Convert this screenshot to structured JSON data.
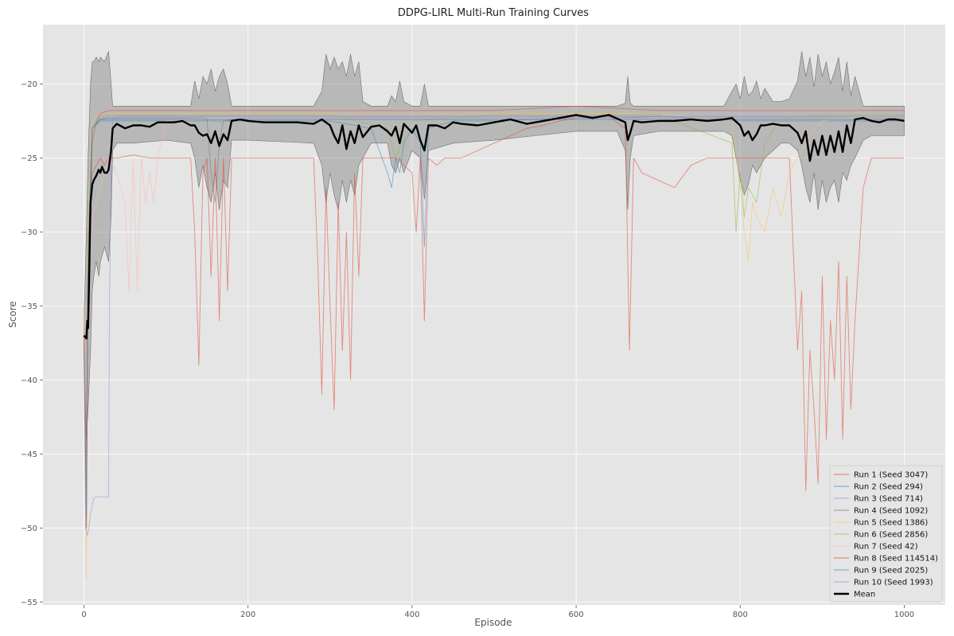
{
  "chart_data": {
    "type": "line",
    "title": "DDPG-LIRL Multi-Run Training Curves",
    "xlabel": "Episode",
    "ylabel": "Score",
    "xlim": [
      -50,
      1050
    ],
    "ylim": [
      -55.2,
      -16.0
    ],
    "xticks": [
      0,
      200,
      400,
      600,
      800,
      1000
    ],
    "yticks": [
      -55,
      -50,
      -45,
      -40,
      -35,
      -30,
      -25,
      -20
    ],
    "grid": true,
    "background": "#e5e5e5",
    "legend_position": "bottom-right",
    "series": [
      {
        "name": "Run 1 (Seed 3047)",
        "color": "#e24a33",
        "x": [
          0,
          3,
          5,
          10,
          15,
          20,
          25,
          30,
          40,
          60,
          80,
          100,
          120,
          130,
          135,
          140,
          145,
          150,
          155,
          160,
          165,
          170,
          175,
          180,
          200,
          220,
          240,
          260,
          280,
          285,
          290,
          295,
          300,
          305,
          310,
          315,
          320,
          325,
          330,
          335,
          340,
          350,
          360,
          380,
          400,
          405,
          410,
          415,
          420,
          430,
          440,
          450,
          460,
          480,
          500,
          520,
          540,
          560,
          580,
          600,
          620,
          640,
          660,
          665,
          670,
          680,
          700,
          720,
          740,
          760,
          780,
          800,
          820,
          840,
          860,
          870,
          875,
          880,
          885,
          890,
          895,
          900,
          905,
          910,
          915,
          920,
          925,
          930,
          935,
          940,
          950,
          960,
          970,
          980,
          990,
          1000
        ],
        "y": [
          -36,
          -46,
          -30,
          -26,
          -25.5,
          -25,
          -25.5,
          -25,
          -25,
          -24.8,
          -25,
          -25,
          -25,
          -25,
          -30,
          -39,
          -26,
          -25,
          -33,
          -25,
          -36,
          -25,
          -34,
          -25,
          -25,
          -25,
          -25,
          -25,
          -25,
          -32,
          -41,
          -27,
          -35,
          -42,
          -28,
          -38,
          -30,
          -40,
          -26,
          -33,
          -25,
          -25,
          -25,
          -25,
          -26,
          -30,
          -25,
          -36,
          -25,
          -25.5,
          -25,
          -25,
          -25,
          -24.5,
          -24,
          -23.5,
          -23,
          -22.8,
          -22.5,
          -22.3,
          -22.2,
          -22.2,
          -23,
          -38,
          -25,
          -26,
          -26.5,
          -27,
          -25.5,
          -25,
          -25,
          -25,
          -25,
          -25,
          -25,
          -38,
          -34,
          -47.5,
          -38,
          -42,
          -47,
          -33,
          -44,
          -36,
          -40,
          -32,
          -44,
          -33,
          -42,
          -36,
          -27,
          -25,
          -25,
          -25,
          -25,
          -25
        ]
      },
      {
        "name": "Run 2 (Seed 294)",
        "color": "#348abd",
        "x": [
          0,
          3,
          5,
          10,
          20,
          30,
          60,
          100,
          150,
          200,
          250,
          300,
          350,
          370,
          375,
          380,
          385,
          390,
          400,
          410,
          415,
          420,
          450,
          500,
          550,
          600,
          650,
          700,
          750,
          800,
          850,
          900,
          950,
          1000
        ],
        "y": [
          -38,
          -50,
          -30,
          -23,
          -22.5,
          -22.5,
          -22.5,
          -22.5,
          -22.5,
          -22.5,
          -22.5,
          -22.5,
          -23,
          -26,
          -27,
          -25,
          -26,
          -24,
          -23,
          -24,
          -31,
          -23,
          -22.5,
          -22.5,
          -22.4,
          -22.3,
          -22.3,
          -22.2,
          -22.3,
          -22.5,
          -22.5,
          -22.5,
          -22.5,
          -22.5
        ]
      },
      {
        "name": "Run 3 (Seed 714)",
        "color": "#988ed5",
        "x": [
          0,
          3,
          5,
          10,
          20,
          30,
          60,
          100,
          150,
          200,
          300,
          400,
          500,
          600,
          700,
          800,
          900,
          1000
        ],
        "y": [
          -37,
          -49,
          -35,
          -23,
          -22.3,
          -22.2,
          -22.2,
          -22.2,
          -22.2,
          -22.2,
          -22.2,
          -22.2,
          -22.2,
          -22.2,
          -22.2,
          -22.2,
          -22.2,
          -22.2
        ]
      },
      {
        "name": "Run 4 (Seed 1092)",
        "color": "#777777",
        "x": [
          0,
          3,
          5,
          10,
          20,
          30,
          60,
          100,
          150,
          155,
          160,
          165,
          170,
          200,
          300,
          400,
          500,
          600,
          700,
          800,
          900,
          1000
        ],
        "y": [
          -37,
          -48,
          -32,
          -23,
          -22.4,
          -22.3,
          -22.3,
          -22.3,
          -22.3,
          -26,
          -28,
          -24,
          -22.5,
          -22.3,
          -22.3,
          -22.3,
          -22.3,
          -22.3,
          -22.3,
          -22.3,
          -22.3,
          -22.3
        ]
      },
      {
        "name": "Run 5 (Seed 1386)",
        "color": "#fbc15e",
        "x": [
          0,
          3,
          5,
          8,
          10,
          20,
          30,
          60,
          100,
          200,
          300,
          400,
          500,
          600,
          700,
          790,
          800,
          805,
          810,
          815,
          820,
          830,
          840,
          850,
          860,
          870,
          880,
          890,
          900,
          950,
          1000
        ],
        "y": [
          -35,
          -53.5,
          -30,
          -24,
          -22.5,
          -22,
          -22,
          -22,
          -22,
          -22,
          -22,
          -22,
          -22,
          -22,
          -22,
          -22.5,
          -27,
          -30,
          -32,
          -28,
          -29,
          -30,
          -27,
          -29,
          -26,
          -25,
          -24,
          -23,
          -22.5,
          -22.2,
          -22.2
        ]
      },
      {
        "name": "Run 6 (Seed 2856)",
        "color": "#8eba42",
        "x": [
          0,
          3,
          5,
          10,
          20,
          30,
          60,
          100,
          200,
          300,
          370,
          380,
          400,
          500,
          600,
          700,
          790,
          795,
          800,
          805,
          810,
          820,
          830,
          850,
          900,
          1000
        ],
        "y": [
          -36,
          -50,
          -31,
          -23,
          -22.2,
          -22.1,
          -22.1,
          -22.1,
          -22.1,
          -22.1,
          -23,
          -25,
          -22.5,
          -22.1,
          -22.1,
          -22.1,
          -24,
          -30,
          -26,
          -29,
          -27,
          -28,
          -24,
          -22.3,
          -22.1,
          -22.1
        ]
      },
      {
        "name": "Run 7 (Seed 42)",
        "color": "#ffb5b8",
        "x": [
          0,
          3,
          5,
          10,
          20,
          30,
          40,
          50,
          55,
          60,
          65,
          70,
          75,
          80,
          85,
          90,
          100,
          150,
          200,
          300,
          400,
          500,
          600,
          700,
          800,
          900,
          1000
        ],
        "y": [
          -36,
          -49,
          -34,
          -29,
          -27,
          -25,
          -26,
          -28,
          -34,
          -25,
          -34,
          -25,
          -28,
          -26,
          -28,
          -25,
          -22.5,
          -22.3,
          -22.3,
          -22.3,
          -22.3,
          -22.3,
          -22.3,
          -22.3,
          -22.3,
          -22.3,
          -22.3
        ]
      },
      {
        "name": "Run 8 (Seed 114514)",
        "color": "#e24a33",
        "x": [
          0,
          3,
          5,
          10,
          15,
          20,
          30,
          40,
          60,
          100,
          200,
          300,
          400,
          500,
          600,
          700,
          800,
          850,
          900,
          950,
          1000
        ],
        "y": [
          -37,
          -50,
          -34,
          -24,
          -22.5,
          -22,
          -21.8,
          -21.8,
          -21.8,
          -21.8,
          -21.8,
          -21.8,
          -21.8,
          -21.8,
          -21.5,
          -21.8,
          -21.8,
          -21.8,
          -21.8,
          -21.8,
          -21.8
        ]
      },
      {
        "name": "Run 9 (Seed 2025)",
        "color": "#348abd",
        "x": [
          0,
          3,
          5,
          10,
          20,
          30,
          60,
          100,
          200,
          300,
          400,
          500,
          600,
          700,
          800,
          900,
          1000
        ],
        "y": [
          -38,
          -49,
          -33,
          -23,
          -22.4,
          -22.4,
          -22.4,
          -22.4,
          -22.4,
          -22.4,
          -22.4,
          -22.4,
          -22.4,
          -22.4,
          -22.4,
          -22.4,
          -22.4
        ]
      },
      {
        "name": "Run 10 (Seed 1993)",
        "color": "#988ed5",
        "x": [
          0,
          2,
          4,
          6,
          8,
          10,
          12,
          15,
          20,
          25,
          28,
          30,
          31,
          33,
          35,
          40,
          60,
          100,
          200,
          300,
          400,
          500,
          600,
          700,
          800,
          900,
          1000
        ],
        "y": [
          -38,
          -50,
          -50.5,
          -50,
          -49,
          -48.5,
          -48,
          -47.9,
          -47.9,
          -47.9,
          -47.9,
          -47.9,
          -35,
          -26,
          -22.5,
          -22.2,
          -22.2,
          -22.2,
          -22.2,
          -22.2,
          -22.2,
          -22.2,
          -22.2,
          -22.2,
          -22.2,
          -22.2,
          -22.2
        ]
      },
      {
        "name": "Mean",
        "color": "#000000",
        "x": [
          0,
          3,
          4,
          5,
          6,
          8,
          10,
          12,
          15,
          18,
          20,
          22,
          25,
          28,
          30,
          33,
          35,
          40,
          50,
          60,
          70,
          80,
          90,
          100,
          110,
          120,
          130,
          135,
          140,
          145,
          150,
          155,
          160,
          165,
          170,
          175,
          180,
          190,
          200,
          220,
          240,
          260,
          280,
          290,
          300,
          305,
          310,
          315,
          320,
          325,
          330,
          335,
          340,
          350,
          360,
          370,
          375,
          380,
          385,
          390,
          400,
          405,
          410,
          415,
          420,
          430,
          440,
          450,
          460,
          480,
          500,
          520,
          540,
          560,
          580,
          600,
          620,
          640,
          660,
          663,
          666,
          670,
          680,
          700,
          720,
          740,
          760,
          780,
          790,
          800,
          805,
          810,
          815,
          820,
          825,
          830,
          840,
          850,
          860,
          870,
          875,
          880,
          885,
          890,
          895,
          900,
          905,
          910,
          915,
          920,
          925,
          930,
          935,
          940,
          950,
          960,
          970,
          980,
          990,
          1000
        ],
        "y": [
          -37,
          -37.2,
          -36,
          -36.5,
          -34,
          -28,
          -26.8,
          -26.5,
          -26.2,
          -25.8,
          -26,
          -25.6,
          -26,
          -26,
          -25.8,
          -24.5,
          -23,
          -22.7,
          -23,
          -22.8,
          -22.8,
          -22.9,
          -22.6,
          -22.6,
          -22.6,
          -22.5,
          -22.8,
          -22.8,
          -23.3,
          -23.5,
          -23.4,
          -24,
          -23.2,
          -24.2,
          -23.4,
          -23.8,
          -22.5,
          -22.4,
          -22.5,
          -22.6,
          -22.6,
          -22.6,
          -22.7,
          -22.4,
          -22.8,
          -23.5,
          -24,
          -22.8,
          -24.4,
          -23.2,
          -24,
          -22.8,
          -23.6,
          -22.9,
          -22.8,
          -23.2,
          -23.5,
          -22.9,
          -24,
          -22.7,
          -23.3,
          -22.8,
          -23.8,
          -24.5,
          -22.8,
          -22.8,
          -23,
          -22.6,
          -22.7,
          -22.8,
          -22.6,
          -22.4,
          -22.7,
          -22.5,
          -22.3,
          -22.1,
          -22.3,
          -22.1,
          -22.6,
          -23.8,
          -23.3,
          -22.5,
          -22.6,
          -22.5,
          -22.5,
          -22.4,
          -22.5,
          -22.4,
          -22.3,
          -22.8,
          -23.5,
          -23.2,
          -23.8,
          -23.4,
          -22.8,
          -22.8,
          -22.7,
          -22.8,
          -22.8,
          -23.3,
          -24,
          -23.2,
          -25.2,
          -23.8,
          -24.8,
          -23.5,
          -24.8,
          -23.5,
          -24.6,
          -23.2,
          -24.6,
          -22.8,
          -24,
          -22.4,
          -22.3,
          -22.5,
          -22.6,
          -22.4,
          -22.4,
          -22.5
        ]
      }
    ],
    "band": {
      "color": "#808080",
      "x": [
        0,
        3,
        5,
        8,
        10,
        12,
        15,
        18,
        20,
        25,
        30,
        33,
        35,
        40,
        60,
        100,
        130,
        135,
        140,
        145,
        150,
        155,
        160,
        165,
        170,
        175,
        180,
        200,
        280,
        290,
        295,
        300,
        305,
        310,
        315,
        320,
        325,
        330,
        335,
        340,
        350,
        370,
        375,
        380,
        385,
        390,
        400,
        410,
        415,
        420,
        450,
        500,
        550,
        600,
        650,
        660,
        663,
        666,
        670,
        700,
        750,
        780,
        790,
        795,
        800,
        805,
        810,
        815,
        820,
        825,
        830,
        840,
        850,
        860,
        870,
        875,
        880,
        885,
        890,
        895,
        900,
        905,
        910,
        915,
        920,
        925,
        930,
        935,
        940,
        950,
        960,
        970,
        980,
        990,
        1000
      ],
      "upper": [
        -36,
        -30,
        -25,
        -20,
        -18.5,
        -18.5,
        -18.2,
        -18.5,
        -18.2,
        -18.5,
        -17.8,
        -20,
        -21.5,
        -21.5,
        -21.5,
        -21.5,
        -21.5,
        -19.8,
        -21,
        -19.5,
        -20,
        -19,
        -20.5,
        -19.5,
        -19,
        -20,
        -21.5,
        -21.5,
        -21.5,
        -20.5,
        -18,
        -19,
        -18.2,
        -19,
        -18.5,
        -19.5,
        -18,
        -19.5,
        -18.5,
        -21.2,
        -21.5,
        -21.5,
        -20.8,
        -21.2,
        -19.8,
        -21.2,
        -21.5,
        -21.5,
        -20,
        -21.5,
        -21.5,
        -21.5,
        -21.5,
        -21.5,
        -21.5,
        -21.3,
        -19.5,
        -21.3,
        -21.5,
        -21.5,
        -21.5,
        -21.5,
        -20.5,
        -20,
        -21,
        -19.5,
        -20.8,
        -20.5,
        -19.8,
        -21,
        -20.3,
        -21.2,
        -21.2,
        -21,
        -19.8,
        -17.8,
        -19.5,
        -18.2,
        -20.2,
        -18,
        -19.5,
        -18.5,
        -20,
        -19.2,
        -18.2,
        -20.5,
        -18.5,
        -20.8,
        -19.5,
        -21.5,
        -21.5,
        -21.5,
        -21.5,
        -21.5,
        -21.5
      ],
      "lower": [
        -38,
        -44,
        -42,
        -38,
        -34,
        -33,
        -32,
        -33,
        -32,
        -31,
        -32,
        -29,
        -24.5,
        -24,
        -24,
        -23.8,
        -24,
        -25,
        -27,
        -25.5,
        -27,
        -28,
        -26,
        -28.5,
        -26.5,
        -27,
        -23.8,
        -23.8,
        -24,
        -25.5,
        -28,
        -26,
        -27.5,
        -28.5,
        -26.5,
        -28,
        -26.5,
        -27.5,
        -25.5,
        -25,
        -24,
        -24,
        -25.5,
        -26,
        -25,
        -26,
        -24.5,
        -25,
        -27.8,
        -24.5,
        -24,
        -23.8,
        -23.5,
        -23.2,
        -23.2,
        -24.5,
        -28.5,
        -25,
        -23.5,
        -23.2,
        -23.2,
        -23.2,
        -23.5,
        -25,
        -26.5,
        -27.5,
        -26.8,
        -25.5,
        -26,
        -25.5,
        -25,
        -24.5,
        -24,
        -24,
        -24.5,
        -25.5,
        -27,
        -28,
        -26,
        -28.5,
        -26.5,
        -28,
        -27,
        -26.5,
        -28,
        -26,
        -26.5,
        -25.5,
        -25,
        -23.8,
        -23.5,
        -23.5,
        -23.5,
        -23.5,
        -23.5
      ]
    }
  }
}
